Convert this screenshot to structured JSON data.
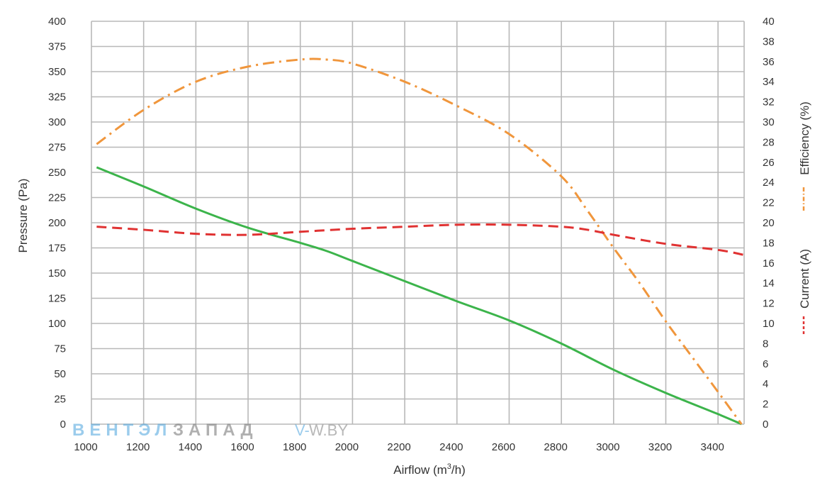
{
  "watermark": {
    "brand_blue": "ВЕНТЭЛ",
    "brand_grey": "ЗАПАД",
    "site_blue": "V-",
    "site_grey": "W.BY"
  },
  "chart_data": {
    "type": "line",
    "xlabel_main": "Airflow (m",
    "xlabel_sup": "3",
    "xlabel_end": "/h)",
    "ylabel": "Pressure (Pa)",
    "y2label_top": "Efficiency (%)",
    "y2label_bottom": "Current (A)",
    "xlim": [
      1000,
      3500
    ],
    "ylim": [
      0,
      400
    ],
    "y2lim": [
      0,
      40
    ],
    "x_ticks": [
      1000,
      1200,
      1400,
      1600,
      1800,
      2000,
      2200,
      2400,
      2600,
      2800,
      3000,
      3200,
      3400
    ],
    "y_ticks": [
      0,
      25,
      50,
      75,
      100,
      125,
      150,
      175,
      200,
      225,
      250,
      275,
      300,
      325,
      350,
      375,
      400
    ],
    "y2_ticks": [
      0,
      2,
      4,
      6,
      8,
      10,
      12,
      14,
      16,
      18,
      20,
      22,
      24,
      26,
      28,
      30,
      32,
      34,
      36,
      38,
      40
    ],
    "grid": true,
    "colors": {
      "pressure": "#3cb44b",
      "efficiency": "#f0963c",
      "current": "#e03232"
    },
    "series": [
      {
        "key": "pressure",
        "axis": "left",
        "style": "solid",
        "x": [
          1020,
          1200,
          1400,
          1600,
          1800,
          1900,
          2000,
          2200,
          2400,
          2600,
          2800,
          3000,
          3200,
          3400,
          3490
        ],
        "y": [
          255,
          236,
          214,
          195,
          180,
          172,
          162,
          142,
          122,
          103,
          80,
          54,
          31,
          10,
          0
        ]
      },
      {
        "key": "efficiency",
        "axis": "right",
        "style": "dashdot",
        "x": [
          1020,
          1200,
          1400,
          1600,
          1800,
          1900,
          2000,
          2200,
          2400,
          2600,
          2800,
          2900,
          3000,
          3100,
          3200,
          3300,
          3400,
          3490
        ],
        "y": [
          27.8,
          31.2,
          34.0,
          35.5,
          36.2,
          36.2,
          35.8,
          34.0,
          31.6,
          28.8,
          24.6,
          21.2,
          17.5,
          14.0,
          10.2,
          6.7,
          3.2,
          0
        ]
      },
      {
        "key": "current",
        "axis": "right",
        "style": "dashed",
        "x": [
          1020,
          1200,
          1400,
          1600,
          1800,
          2000,
          2200,
          2400,
          2600,
          2800,
          2900,
          3000,
          3200,
          3400,
          3500
        ],
        "y": [
          19.6,
          19.3,
          18.9,
          18.8,
          19.1,
          19.4,
          19.6,
          19.8,
          19.8,
          19.6,
          19.3,
          18.8,
          17.9,
          17.3,
          16.8
        ]
      }
    ]
  }
}
